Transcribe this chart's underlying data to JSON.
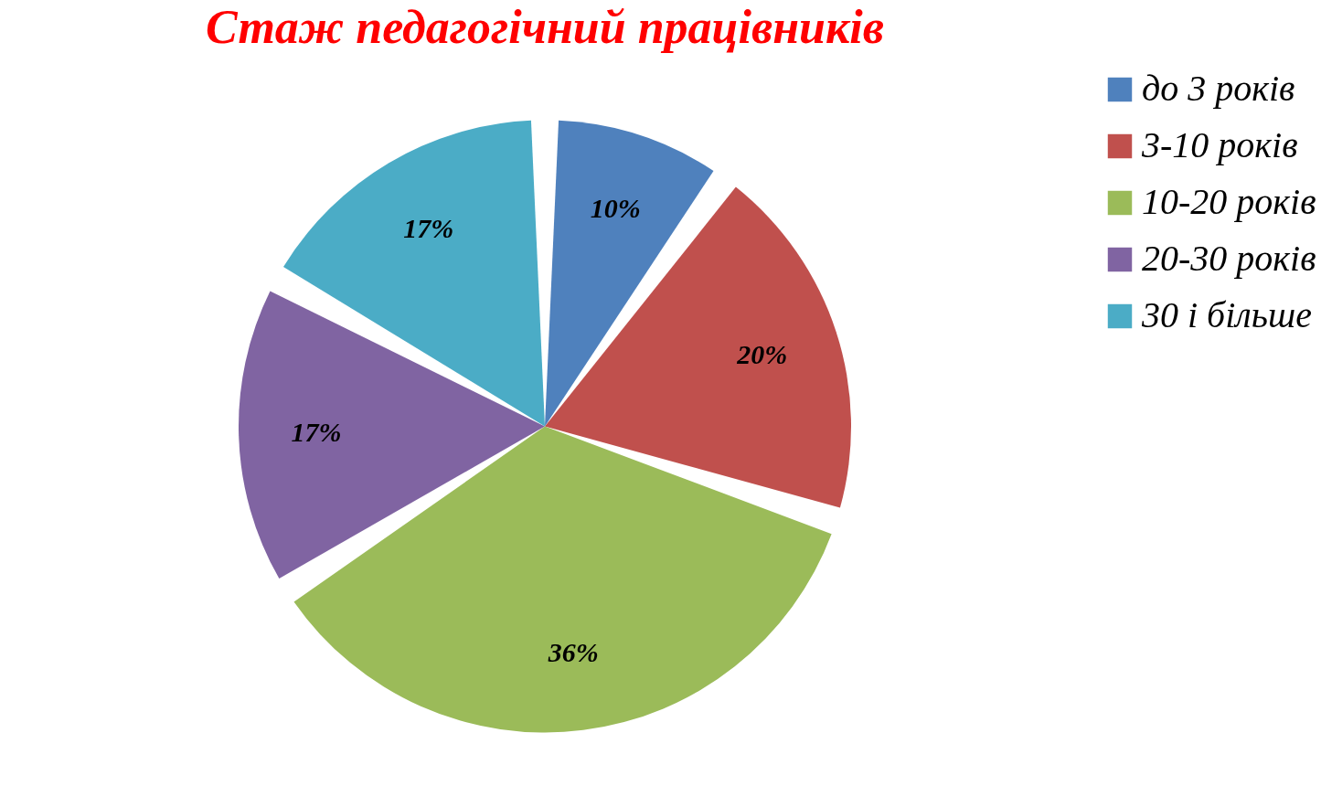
{
  "chart_data": {
    "type": "pie",
    "title": "Стаж педагогічний працівників",
    "categories": [
      "до 3 років",
      "3-10 років",
      "10-20 років",
      "20-30 років",
      "30 і більше"
    ],
    "values": [
      10,
      20,
      36,
      17,
      17
    ],
    "colors": [
      "#4f81bd",
      "#c0504d",
      "#9bbb59",
      "#8064a2",
      "#4bacc6"
    ],
    "value_labels": [
      "10%",
      "20%",
      "36%",
      "17%",
      "17%"
    ],
    "legend": "right"
  }
}
